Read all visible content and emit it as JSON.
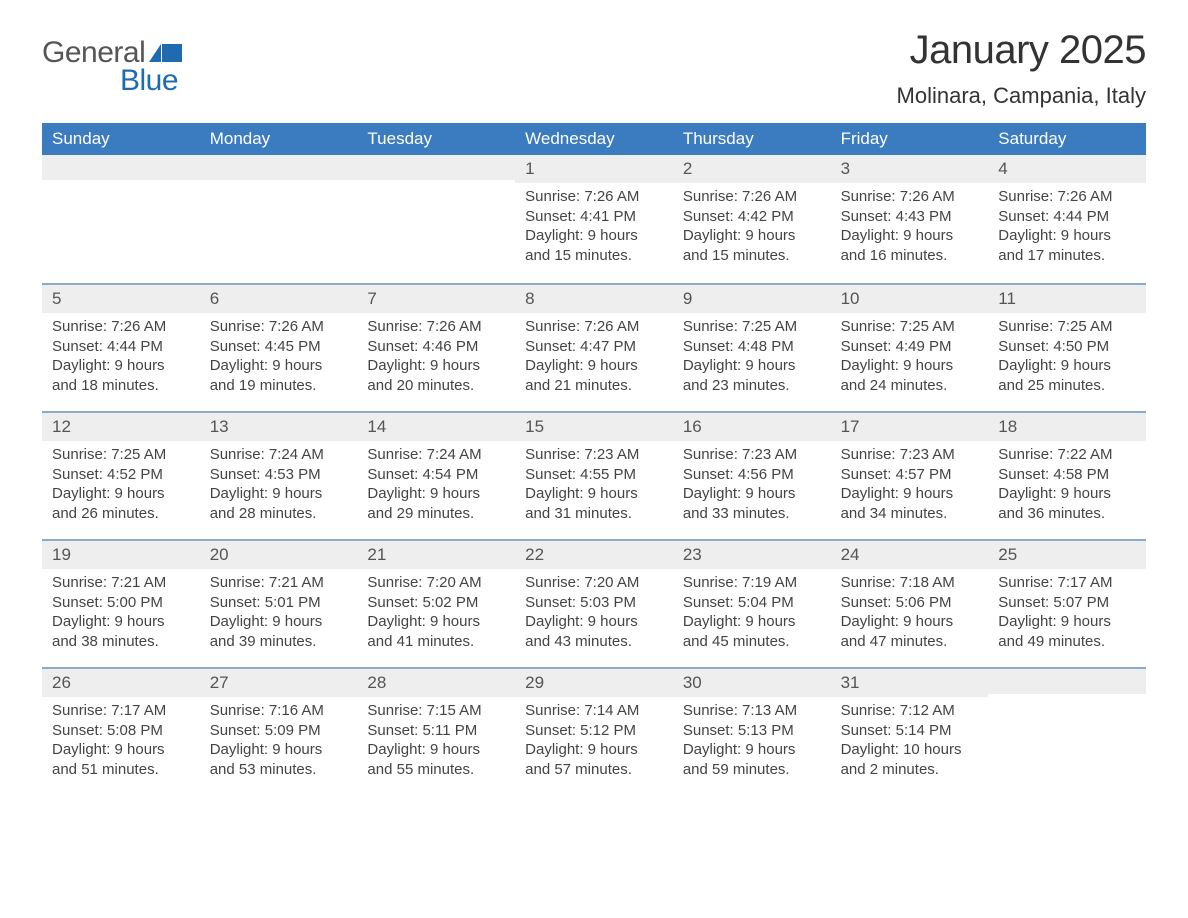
{
  "logo": {
    "text1": "General",
    "text2": "Blue",
    "flag_color": "#1f6bb0"
  },
  "title": "January 2025",
  "location": "Molinara, Campania, Italy",
  "colors": {
    "header_blue": "#3b7bbf",
    "accent_blue": "#1f6bb0",
    "row_gray": "#eeeeee",
    "divider": "#8aa9c7",
    "text_dark": "#333333"
  },
  "daynames": [
    "Sunday",
    "Monday",
    "Tuesday",
    "Wednesday",
    "Thursday",
    "Friday",
    "Saturday"
  ],
  "weeks": [
    [
      null,
      null,
      null,
      {
        "n": "1",
        "sr": "7:26 AM",
        "ss": "4:41 PM",
        "dl": "9 hours and 15 minutes."
      },
      {
        "n": "2",
        "sr": "7:26 AM",
        "ss": "4:42 PM",
        "dl": "9 hours and 15 minutes."
      },
      {
        "n": "3",
        "sr": "7:26 AM",
        "ss": "4:43 PM",
        "dl": "9 hours and 16 minutes."
      },
      {
        "n": "4",
        "sr": "7:26 AM",
        "ss": "4:44 PM",
        "dl": "9 hours and 17 minutes."
      }
    ],
    [
      {
        "n": "5",
        "sr": "7:26 AM",
        "ss": "4:44 PM",
        "dl": "9 hours and 18 minutes."
      },
      {
        "n": "6",
        "sr": "7:26 AM",
        "ss": "4:45 PM",
        "dl": "9 hours and 19 minutes."
      },
      {
        "n": "7",
        "sr": "7:26 AM",
        "ss": "4:46 PM",
        "dl": "9 hours and 20 minutes."
      },
      {
        "n": "8",
        "sr": "7:26 AM",
        "ss": "4:47 PM",
        "dl": "9 hours and 21 minutes."
      },
      {
        "n": "9",
        "sr": "7:25 AM",
        "ss": "4:48 PM",
        "dl": "9 hours and 23 minutes."
      },
      {
        "n": "10",
        "sr": "7:25 AM",
        "ss": "4:49 PM",
        "dl": "9 hours and 24 minutes."
      },
      {
        "n": "11",
        "sr": "7:25 AM",
        "ss": "4:50 PM",
        "dl": "9 hours and 25 minutes."
      }
    ],
    [
      {
        "n": "12",
        "sr": "7:25 AM",
        "ss": "4:52 PM",
        "dl": "9 hours and 26 minutes."
      },
      {
        "n": "13",
        "sr": "7:24 AM",
        "ss": "4:53 PM",
        "dl": "9 hours and 28 minutes."
      },
      {
        "n": "14",
        "sr": "7:24 AM",
        "ss": "4:54 PM",
        "dl": "9 hours and 29 minutes."
      },
      {
        "n": "15",
        "sr": "7:23 AM",
        "ss": "4:55 PM",
        "dl": "9 hours and 31 minutes."
      },
      {
        "n": "16",
        "sr": "7:23 AM",
        "ss": "4:56 PM",
        "dl": "9 hours and 33 minutes."
      },
      {
        "n": "17",
        "sr": "7:23 AM",
        "ss": "4:57 PM",
        "dl": "9 hours and 34 minutes."
      },
      {
        "n": "18",
        "sr": "7:22 AM",
        "ss": "4:58 PM",
        "dl": "9 hours and 36 minutes."
      }
    ],
    [
      {
        "n": "19",
        "sr": "7:21 AM",
        "ss": "5:00 PM",
        "dl": "9 hours and 38 minutes."
      },
      {
        "n": "20",
        "sr": "7:21 AM",
        "ss": "5:01 PM",
        "dl": "9 hours and 39 minutes."
      },
      {
        "n": "21",
        "sr": "7:20 AM",
        "ss": "5:02 PM",
        "dl": "9 hours and 41 minutes."
      },
      {
        "n": "22",
        "sr": "7:20 AM",
        "ss": "5:03 PM",
        "dl": "9 hours and 43 minutes."
      },
      {
        "n": "23",
        "sr": "7:19 AM",
        "ss": "5:04 PM",
        "dl": "9 hours and 45 minutes."
      },
      {
        "n": "24",
        "sr": "7:18 AM",
        "ss": "5:06 PM",
        "dl": "9 hours and 47 minutes."
      },
      {
        "n": "25",
        "sr": "7:17 AM",
        "ss": "5:07 PM",
        "dl": "9 hours and 49 minutes."
      }
    ],
    [
      {
        "n": "26",
        "sr": "7:17 AM",
        "ss": "5:08 PM",
        "dl": "9 hours and 51 minutes."
      },
      {
        "n": "27",
        "sr": "7:16 AM",
        "ss": "5:09 PM",
        "dl": "9 hours and 53 minutes."
      },
      {
        "n": "28",
        "sr": "7:15 AM",
        "ss": "5:11 PM",
        "dl": "9 hours and 55 minutes."
      },
      {
        "n": "29",
        "sr": "7:14 AM",
        "ss": "5:12 PM",
        "dl": "9 hours and 57 minutes."
      },
      {
        "n": "30",
        "sr": "7:13 AM",
        "ss": "5:13 PM",
        "dl": "9 hours and 59 minutes."
      },
      {
        "n": "31",
        "sr": "7:12 AM",
        "ss": "5:14 PM",
        "dl": "10 hours and 2 minutes."
      },
      null
    ]
  ],
  "labels": {
    "sunrise": "Sunrise: ",
    "sunset": "Sunset: ",
    "daylight": "Daylight: "
  }
}
